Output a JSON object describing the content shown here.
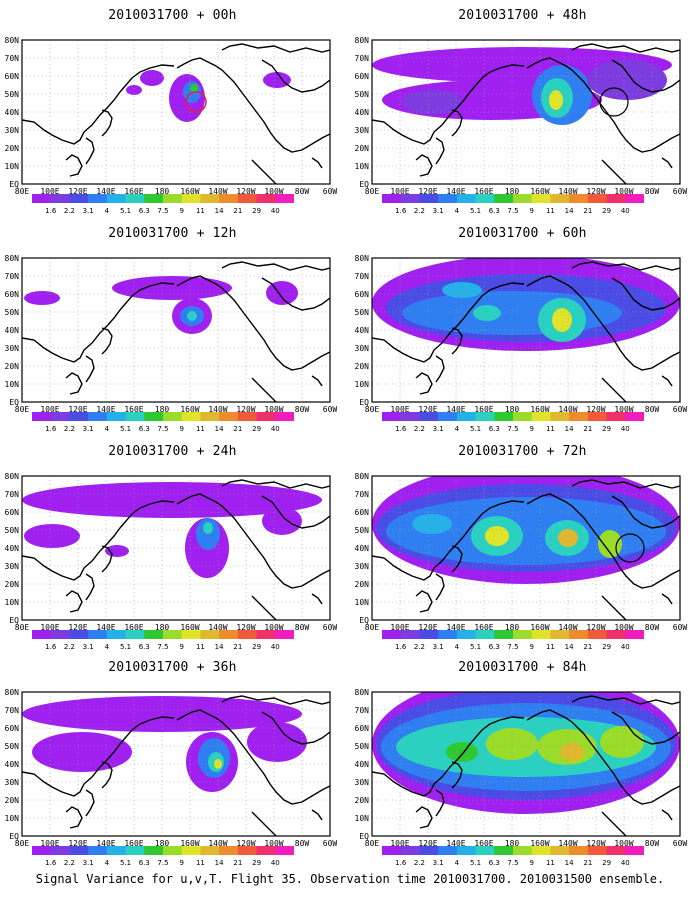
{
  "panels": [
    {
      "title": "2010031700 + 00h"
    },
    {
      "title": "2010031700 + 48h"
    },
    {
      "title": "2010031700 + 12h"
    },
    {
      "title": "2010031700 + 60h"
    },
    {
      "title": "2010031700 + 24h"
    },
    {
      "title": "2010031700 + 72h"
    },
    {
      "title": "2010031700 + 36h"
    },
    {
      "title": "2010031700 + 84h"
    }
  ],
  "map": {
    "lat_labels": [
      "80N",
      "70N",
      "60N",
      "50N",
      "40N",
      "30N",
      "20N",
      "10N",
      "EQ"
    ],
    "lon_labels": [
      "80E",
      "100E",
      "120E",
      "140E",
      "160E",
      "180",
      "160W",
      "140W",
      "120W",
      "100W",
      "80W",
      "60W"
    ]
  },
  "colorbar": {
    "labels": [
      "1.6",
      "2.2",
      "3.1",
      "4",
      "5.1",
      "6.3",
      "7.5",
      "9",
      "11",
      "14",
      "21",
      "29",
      "40"
    ],
    "colors": [
      "#a020f0",
      "#7d3ce0",
      "#4b4be6",
      "#2f7ff2",
      "#26b0e8",
      "#2ad0c0",
      "#30c830",
      "#9bdc2a",
      "#dfe42a",
      "#e0b830",
      "#ec8c2c",
      "#f05a3a",
      "#f0306a",
      "#f01ebf"
    ]
  },
  "footer": "Signal Variance for u,v,T. Flight 35. Observation time 2010031700. 2010031500 ensemble."
}
